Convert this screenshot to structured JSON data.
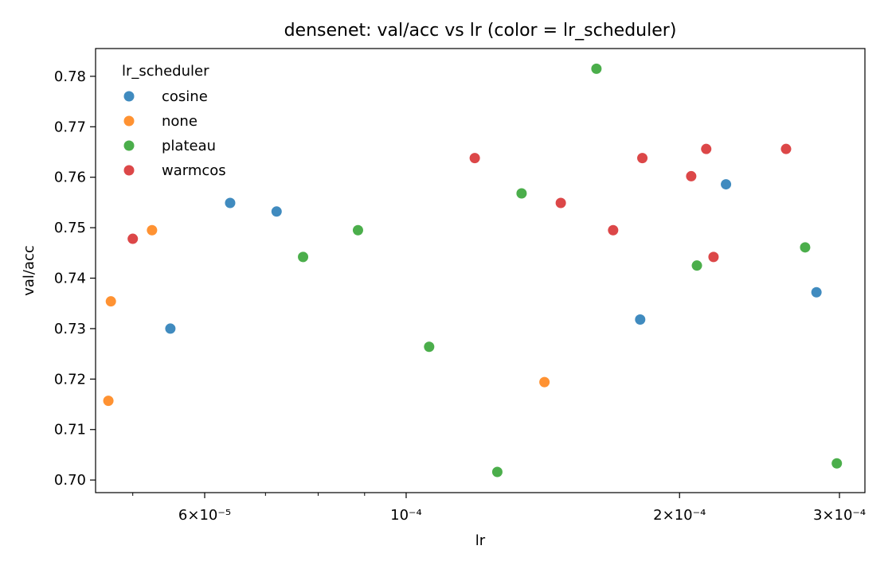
{
  "chart_data": {
    "type": "scatter",
    "title": "densenet: val/acc vs lr (color = lr_scheduler)",
    "xlabel": "lr",
    "ylabel": "val/acc",
    "xscale": "log",
    "xlim": [
      4.55e-05,
      0.00032
    ],
    "ylim": [
      0.6975,
      0.7855
    ],
    "grid": false,
    "legend": {
      "title": "lr_scheduler",
      "placement": "top-left"
    },
    "x_ticks": [
      {
        "value": 6e-05,
        "label": "6×10⁻⁵"
      },
      {
        "value": 0.0001,
        "label": "10⁻⁴"
      },
      {
        "value": 0.0002,
        "label": "2×10⁻⁴"
      },
      {
        "value": 0.0003,
        "label": "3×10⁻⁴"
      }
    ],
    "x_minor_ticks": [
      5e-05,
      7e-05,
      8e-05,
      9e-05
    ],
    "y_ticks": [
      0.7,
      0.71,
      0.72,
      0.73,
      0.74,
      0.75,
      0.76,
      0.77,
      0.78
    ],
    "y_tick_labels": [
      "0.70",
      "0.71",
      "0.72",
      "0.73",
      "0.74",
      "0.75",
      "0.76",
      "0.77",
      "0.78"
    ],
    "series": [
      {
        "name": "cosine",
        "color": "#1f77b4",
        "points": [
          {
            "x": 5.5e-05,
            "y": 0.73
          },
          {
            "x": 6.4e-05,
            "y": 0.7549
          },
          {
            "x": 7.2e-05,
            "y": 0.7532
          },
          {
            "x": 0.000181,
            "y": 0.7318
          },
          {
            "x": 0.000225,
            "y": 0.7586
          },
          {
            "x": 0.000283,
            "y": 0.7372
          }
        ]
      },
      {
        "name": "none",
        "color": "#ff7f0e",
        "points": [
          {
            "x": 4.73e-05,
            "y": 0.7354
          },
          {
            "x": 4.7e-05,
            "y": 0.7157
          },
          {
            "x": 5.25e-05,
            "y": 0.7495
          },
          {
            "x": 0.000142,
            "y": 0.7194
          }
        ]
      },
      {
        "name": "plateau",
        "color": "#2ca02c",
        "points": [
          {
            "x": 7.7e-05,
            "y": 0.7442
          },
          {
            "x": 8.85e-05,
            "y": 0.7495
          },
          {
            "x": 0.000106,
            "y": 0.7264
          },
          {
            "x": 0.000126,
            "y": 0.7016
          },
          {
            "x": 0.000134,
            "y": 0.7568
          },
          {
            "x": 0.000162,
            "y": 0.7815
          },
          {
            "x": 0.000209,
            "y": 0.7425
          },
          {
            "x": 0.000275,
            "y": 0.7461
          },
          {
            "x": 0.000298,
            "y": 0.7033
          }
        ]
      },
      {
        "name": "warmcos",
        "color": "#d62728",
        "points": [
          {
            "x": 5e-05,
            "y": 0.7478
          },
          {
            "x": 0.000119,
            "y": 0.7638
          },
          {
            "x": 0.000148,
            "y": 0.7549
          },
          {
            "x": 0.000169,
            "y": 0.7495
          },
          {
            "x": 0.000182,
            "y": 0.7638
          },
          {
            "x": 0.000206,
            "y": 0.7602
          },
          {
            "x": 0.000214,
            "y": 0.7656
          },
          {
            "x": 0.000218,
            "y": 0.7442
          },
          {
            "x": 0.000262,
            "y": 0.7656
          }
        ]
      }
    ]
  }
}
